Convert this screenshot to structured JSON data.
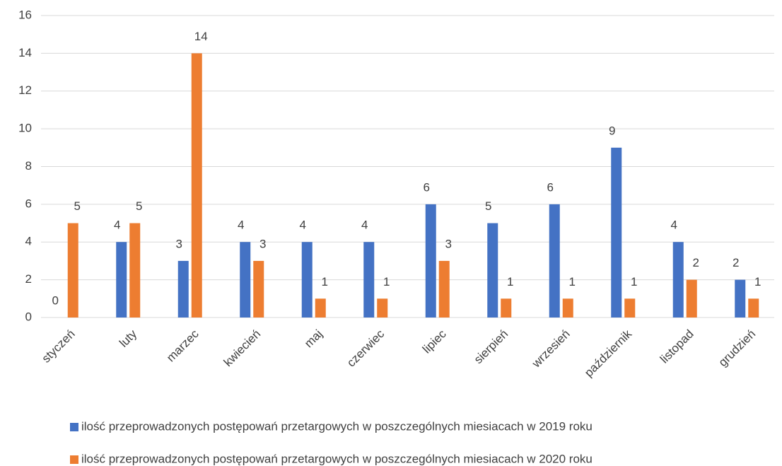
{
  "chart_data": {
    "type": "bar",
    "categories": [
      "styczeń",
      "luty",
      "marzec",
      "kwiecień",
      "maj",
      "czerwiec",
      "lipiec",
      "sierpień",
      "wrzesień",
      "październik",
      "listopad",
      "grudzień"
    ],
    "series": [
      {
        "name": "ilość przeprowadzonych postępowań przetargowych w poszczególnych miesiacach w 2019 roku",
        "color": "#4472c4",
        "values": [
          0,
          4,
          3,
          4,
          4,
          4,
          6,
          5,
          6,
          9,
          4,
          2
        ]
      },
      {
        "name": "ilość przeprowadzonych postępowań przetargowych w poszczególnych miesiacach w 2020 roku",
        "color": "#ed7d31",
        "values": [
          5,
          5,
          14,
          3,
          1,
          1,
          3,
          1,
          1,
          1,
          2,
          1
        ]
      }
    ],
    "ylim": [
      0,
      16
    ],
    "yticks": [
      0,
      2,
      4,
      6,
      8,
      10,
      12,
      14,
      16
    ],
    "grid": true,
    "legend": "bottom"
  }
}
